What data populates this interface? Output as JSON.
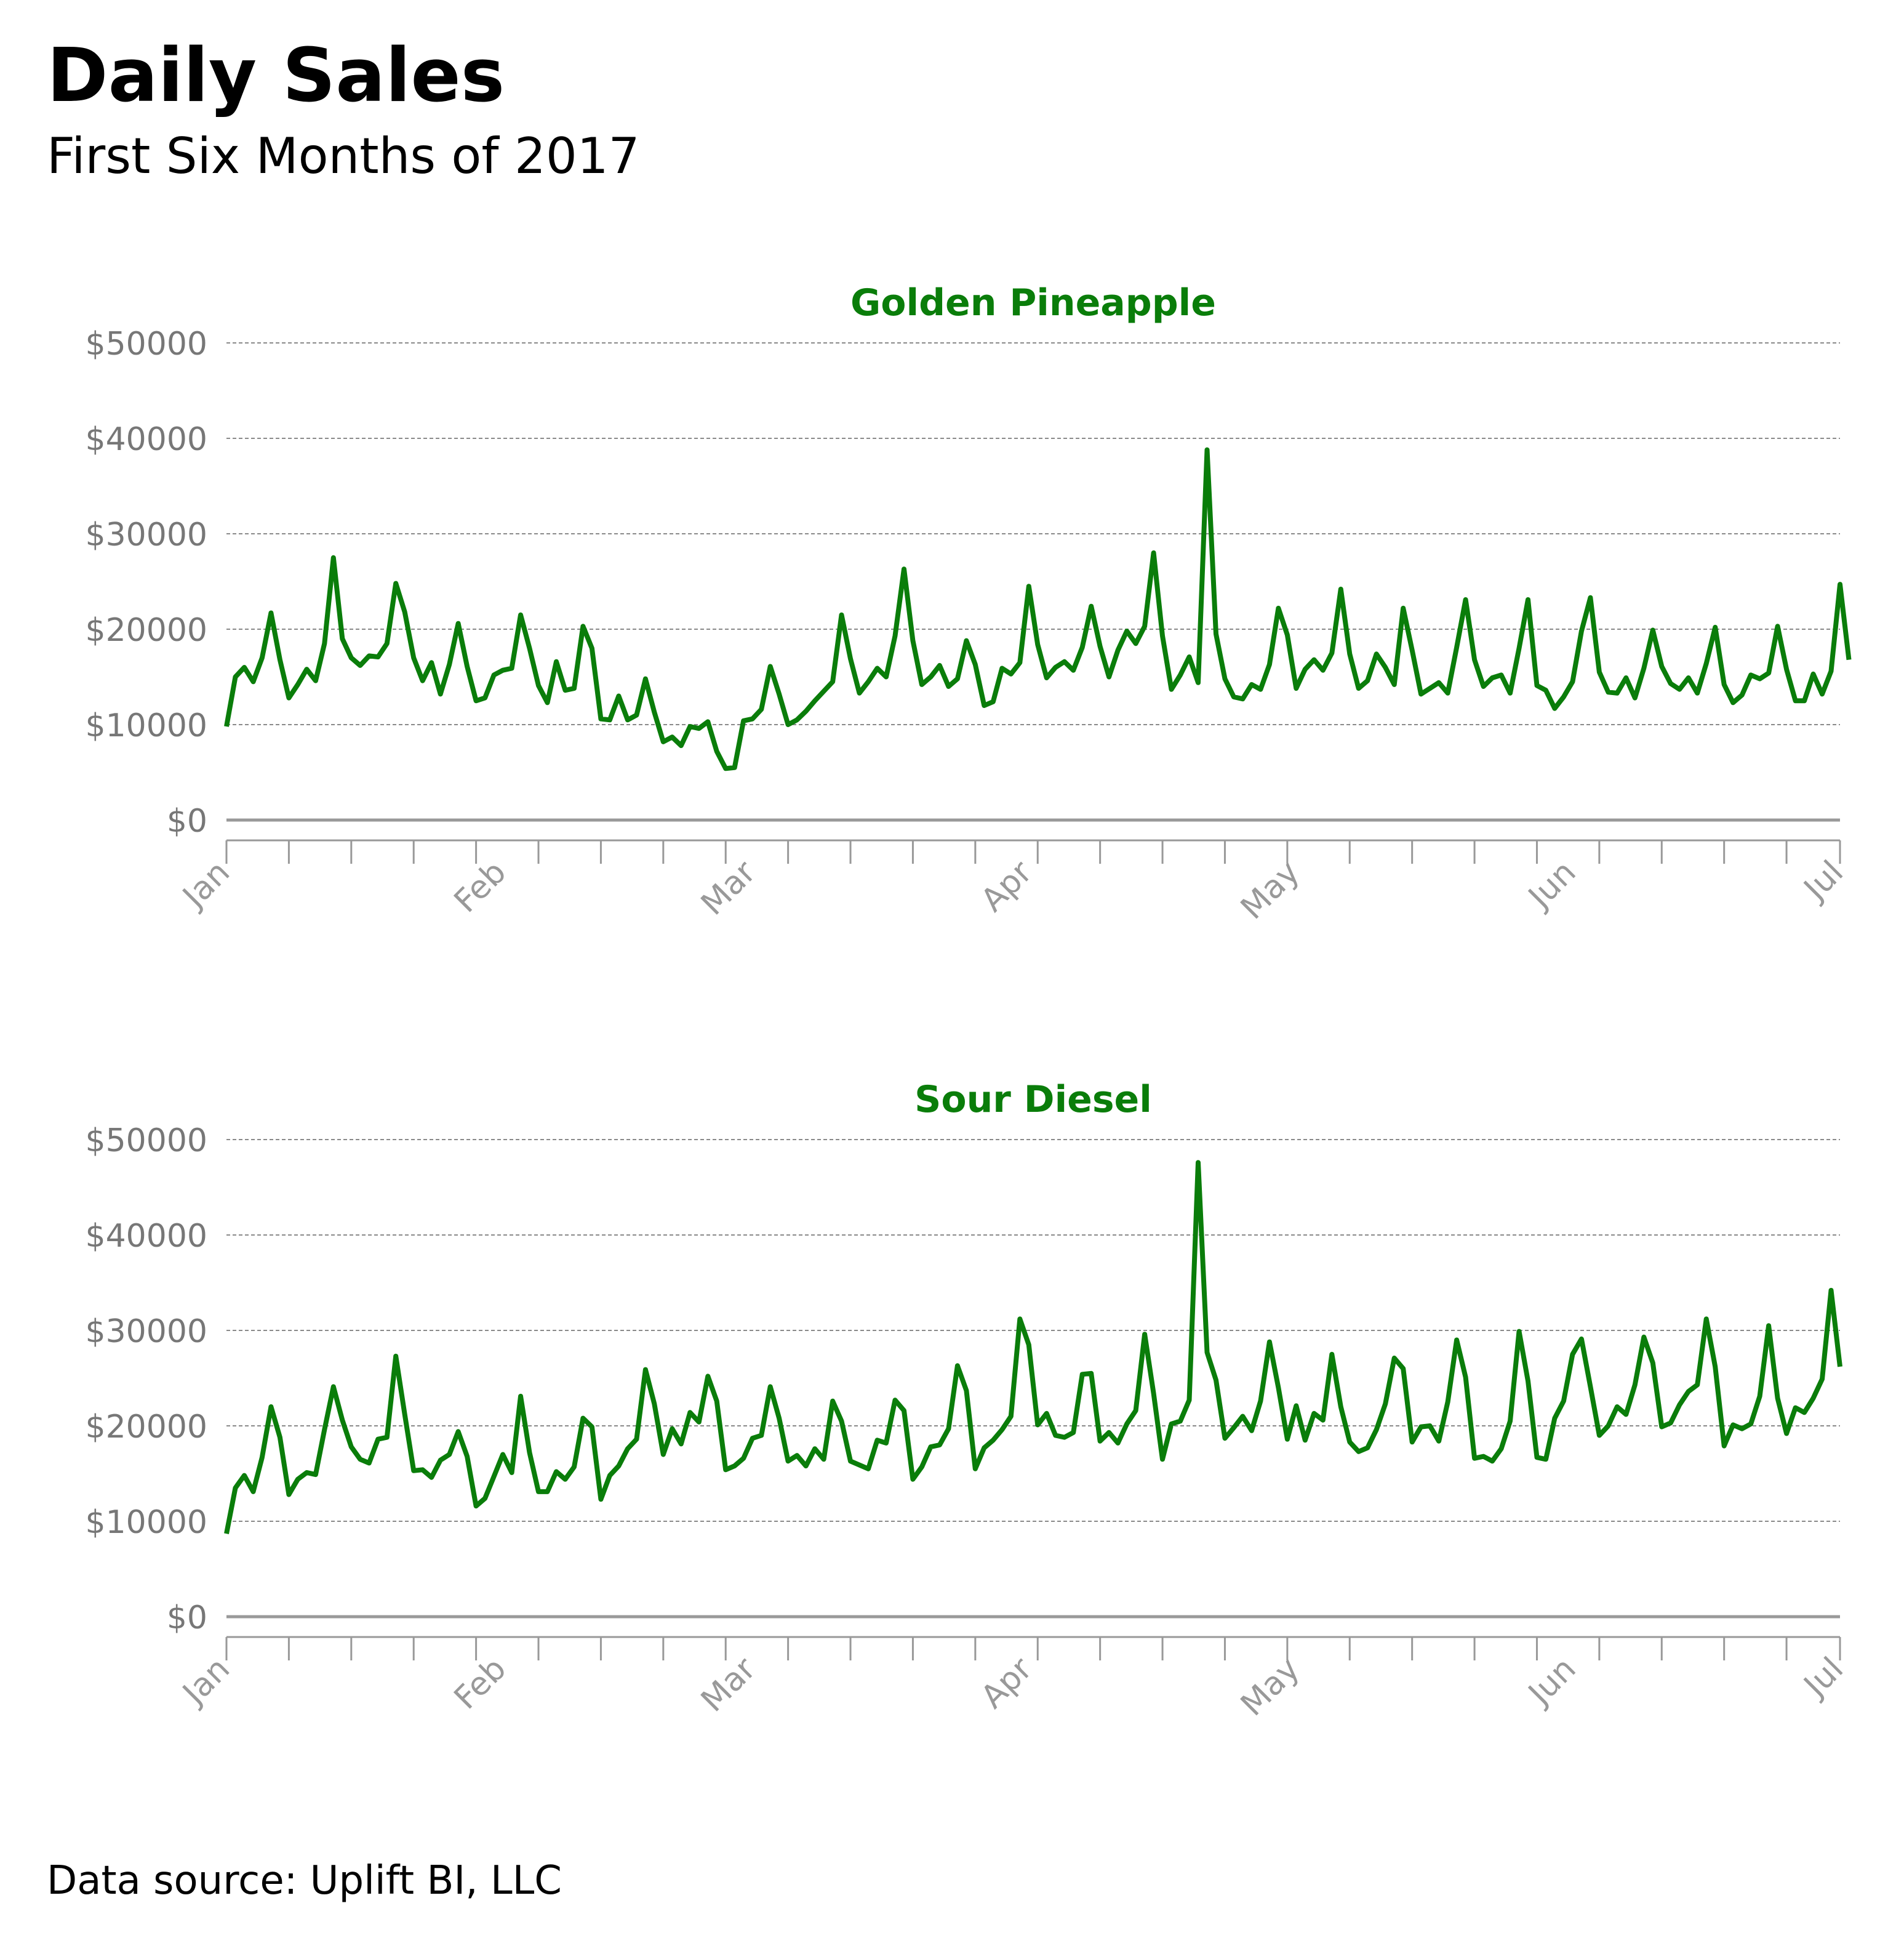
{
  "title": "Daily Sales",
  "subtitle": "First Six Months of 2017",
  "source": "Data source: Uplift BI, LLC",
  "line_color": "#0a7d0a",
  "chart_data": [
    {
      "type": "line",
      "title": "Golden Pineapple",
      "x_start": "2017-01-01",
      "x_end": "2017-07-01",
      "x_tick_labels": [
        "Jan",
        "Feb",
        "Mar",
        "Apr",
        "May",
        "Jun",
        "Jul"
      ],
      "y_tick_labels": [
        "$0",
        "$10000",
        "$20000",
        "$30000",
        "$40000",
        "$50000"
      ],
      "ylim": [
        0,
        50000
      ],
      "grid": true,
      "series": [
        {
          "values": [
            9800,
            15000,
            16000,
            14500,
            17000,
            21700,
            16800,
            12800,
            14200,
            15800,
            14600,
            18500,
            27500,
            19000,
            17000,
            16200,
            17200,
            17100,
            18500,
            24800,
            21800,
            17000,
            14600,
            16500,
            13200,
            16300,
            20600,
            16100,
            12500,
            12800,
            15200,
            15700,
            15900,
            21500,
            18000,
            14100,
            12300,
            16600,
            13600,
            13800,
            20300,
            18000,
            10600,
            10500,
            13000,
            10500,
            11000,
            14800,
            11300,
            8200,
            8700,
            7800,
            9800,
            9600,
            10300,
            7200,
            5400,
            5500,
            10400,
            10600,
            11600,
            16100,
            13200,
            10000,
            10500,
            11400,
            12500,
            13500,
            14500,
            21500,
            16900,
            13300,
            14500,
            15900,
            15000,
            19300,
            26300,
            18800,
            14200,
            15000,
            16200,
            14000,
            14800,
            18800,
            16300,
            12000,
            12400,
            15900,
            15300,
            16500,
            24500,
            18400,
            14900,
            16000,
            16600,
            15700,
            18100,
            22400,
            18200,
            15000,
            17800,
            19800,
            18500,
            20300,
            28000,
            19300,
            13700,
            15200,
            17100,
            14400,
            38800,
            19500,
            14800,
            12900,
            12700,
            14200,
            13700,
            16300,
            22200,
            19400,
            13800,
            15800,
            16800,
            15700,
            17500,
            24200,
            17400,
            13800,
            14600,
            17400,
            16000,
            14200,
            22200,
            17800,
            13200,
            13800,
            14400,
            13300,
            18100,
            23100,
            16800,
            14000,
            14900,
            15200,
            13300,
            18000,
            23100,
            14100,
            13600,
            11700,
            12900,
            14500,
            19800,
            23300,
            15500,
            13400,
            13300,
            14900,
            12800,
            15900,
            19900,
            16100,
            14300,
            13700,
            14900,
            13300,
            16400,
            20200,
            14200,
            12300,
            13100,
            15200,
            14800,
            15400,
            20300,
            15800,
            12500,
            12500,
            15300,
            13200,
            15600,
            24700,
            16800
          ]
        }
      ]
    },
    {
      "type": "line",
      "title": "Sour Diesel",
      "x_start": "2017-01-01",
      "x_end": "2017-07-01",
      "x_tick_labels": [
        "Jan",
        "Feb",
        "Mar",
        "Apr",
        "May",
        "Jun",
        "Jul"
      ],
      "y_tick_labels": [
        "$0",
        "$10000",
        "$20000",
        "$30000",
        "$40000",
        "$50000"
      ],
      "ylim": [
        0,
        50000
      ],
      "grid": true,
      "series": [
        {
          "values": [
            8700,
            13500,
            14800,
            13100,
            16700,
            22000,
            18800,
            12800,
            14400,
            15100,
            14900,
            19600,
            24100,
            20600,
            17800,
            16500,
            16100,
            18600,
            18800,
            27300,
            21200,
            15300,
            15400,
            14600,
            16400,
            17000,
            19400,
            16800,
            11600,
            12400,
            14700,
            17000,
            15100,
            23100,
            17200,
            13100,
            13100,
            15200,
            14400,
            15700,
            20800,
            19900,
            12300,
            14800,
            15800,
            17600,
            18600,
            25900,
            22300,
            17000,
            19700,
            18100,
            21400,
            20400,
            25200,
            22600,
            15400,
            15800,
            16600,
            18700,
            19000,
            24100,
            20800,
            16300,
            16900,
            15800,
            17600,
            16500,
            22600,
            20500,
            16300,
            15900,
            15500,
            18500,
            18200,
            22700,
            21600,
            14400,
            15700,
            17800,
            18000,
            19700,
            26300,
            23700,
            15500,
            17700,
            18500,
            19600,
            21000,
            31200,
            28500,
            20100,
            21300,
            19000,
            18800,
            19300,
            25400,
            25500,
            18400,
            19300,
            18200,
            20200,
            21600,
            29600,
            23400,
            16500,
            20200,
            20500,
            22700,
            47600,
            27700,
            24800,
            18700,
            19800,
            21000,
            19500,
            22600,
            28800,
            24000,
            18600,
            22100,
            18500,
            21300,
            20600,
            27500,
            22000,
            18300,
            17300,
            17700,
            19600,
            22300,
            27100,
            26000,
            18300,
            19900,
            20000,
            18400,
            22500,
            29000,
            25100,
            16600,
            16800,
            16300,
            17600,
            20500,
            29900,
            24700,
            16700,
            16500,
            20800,
            22600,
            27500,
            29100,
            24100,
            19000,
            20000,
            22000,
            21200,
            24300,
            29300,
            26600,
            19900,
            20300,
            22200,
            23600,
            24300,
            31200,
            26200,
            17900,
            20100,
            19700,
            20200,
            23100,
            30500,
            22900,
            19200,
            21900,
            21400,
            22900,
            24900,
            34200,
            26200
          ]
        }
      ]
    }
  ]
}
